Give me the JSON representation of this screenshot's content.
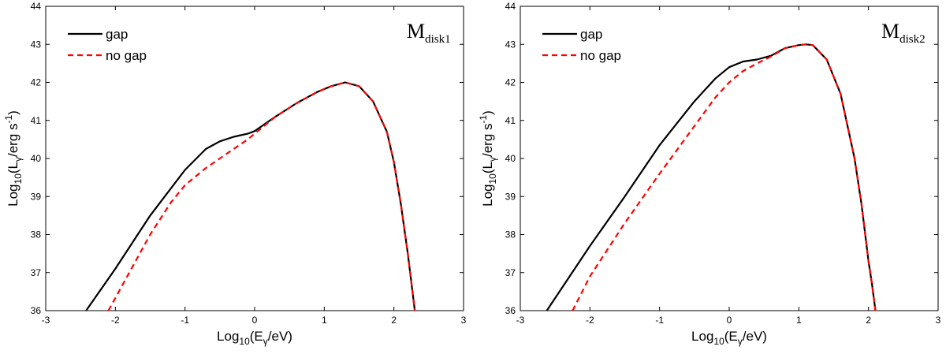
{
  "chart_data": [
    {
      "type": "line",
      "title_main": "M",
      "title_sub": "disk1",
      "xlabel": {
        "prefix": "Log",
        "sub1": "10",
        "mid": "(E",
        "sub2": "γ",
        "suffix": "/eV)"
      },
      "ylabel": {
        "prefix": "Log",
        "sub1": "10",
        "mid": "(L",
        "sub2": "γ",
        "unit": "/erg s",
        "sup": "-1",
        "suffix": ")"
      },
      "xlim": [
        -3,
        3
      ],
      "ylim": [
        36,
        44
      ],
      "xticks": [
        "-3",
        "-2",
        "-1",
        "0",
        "1",
        "2",
        "3"
      ],
      "yticks": [
        "36",
        "37",
        "38",
        "39",
        "40",
        "41",
        "42",
        "43",
        "44"
      ],
      "legend_position": "top-left",
      "series": [
        {
          "name": "gap",
          "color": "#000000",
          "style": "solid",
          "x": [
            -2.42,
            -2.0,
            -1.5,
            -1.0,
            -0.7,
            -0.5,
            -0.3,
            -0.1,
            0.0,
            0.3,
            0.6,
            0.9,
            1.1,
            1.3,
            1.5,
            1.7,
            1.9,
            2.0,
            2.1,
            2.2,
            2.3
          ],
          "y": [
            36.0,
            37.1,
            38.5,
            39.7,
            40.25,
            40.45,
            40.57,
            40.65,
            40.72,
            41.1,
            41.45,
            41.75,
            41.9,
            42.0,
            41.9,
            41.5,
            40.7,
            39.9,
            38.8,
            37.5,
            36.0
          ]
        },
        {
          "name": "no gap",
          "color": "#ff0000",
          "style": "dashed",
          "x": [
            -2.1,
            -1.8,
            -1.5,
            -1.2,
            -1.0,
            -0.7,
            -0.5,
            -0.3,
            -0.1,
            0.0,
            0.3,
            0.6,
            0.9,
            1.1,
            1.3,
            1.5,
            1.7,
            1.9,
            2.0,
            2.1,
            2.2,
            2.3
          ],
          "y": [
            36.0,
            37.0,
            38.0,
            38.85,
            39.3,
            39.75,
            40.0,
            40.25,
            40.5,
            40.65,
            41.1,
            41.45,
            41.75,
            41.9,
            42.0,
            41.9,
            41.5,
            40.7,
            39.9,
            38.8,
            37.5,
            36.0
          ]
        }
      ]
    },
    {
      "type": "line",
      "title_main": "M",
      "title_sub": "disk2",
      "xlabel": {
        "prefix": "Log",
        "sub1": "10",
        "mid": "(E",
        "sub2": "γ",
        "suffix": "/eV)"
      },
      "ylabel": {
        "prefix": "Log",
        "sub1": "10",
        "mid": "(L",
        "sub2": "γ",
        "unit": "/erg s",
        "sup": "-1",
        "suffix": ")"
      },
      "xlim": [
        -3,
        3
      ],
      "ylim": [
        36,
        44
      ],
      "xticks": [
        "-3",
        "-2",
        "-1",
        "0",
        "1",
        "2",
        "3"
      ],
      "yticks": [
        "36",
        "37",
        "38",
        "39",
        "40",
        "41",
        "42",
        "43",
        "44"
      ],
      "legend_position": "top-left",
      "series": [
        {
          "name": "gap",
          "color": "#000000",
          "style": "solid",
          "x": [
            -2.62,
            -2.0,
            -1.5,
            -1.0,
            -0.5,
            -0.2,
            0.0,
            0.2,
            0.4,
            0.6,
            0.8,
            1.0,
            1.1,
            1.2,
            1.4,
            1.6,
            1.8,
            1.9,
            2.0,
            2.05,
            2.1
          ],
          "y": [
            36.0,
            37.7,
            39.0,
            40.35,
            41.5,
            42.1,
            42.4,
            42.55,
            42.6,
            42.7,
            42.9,
            42.98,
            43.0,
            42.98,
            42.6,
            41.7,
            40.0,
            38.8,
            37.3,
            36.7,
            36.0
          ],
          "legend_label": "gap"
        },
        {
          "name": "no gap",
          "color": "#ff0000",
          "style": "dashed",
          "x": [
            -2.25,
            -2.0,
            -1.5,
            -1.0,
            -0.5,
            -0.2,
            0.0,
            0.2,
            0.4,
            0.6,
            0.8,
            1.0,
            1.1,
            1.2,
            1.4,
            1.6,
            1.8,
            1.9,
            2.0,
            2.05,
            2.1
          ],
          "y": [
            36.0,
            36.9,
            38.3,
            39.6,
            40.85,
            41.6,
            42.0,
            42.3,
            42.5,
            42.68,
            42.9,
            42.98,
            43.0,
            42.98,
            42.6,
            41.7,
            40.0,
            38.8,
            37.3,
            36.7,
            36.0
          ]
        }
      ]
    }
  ]
}
